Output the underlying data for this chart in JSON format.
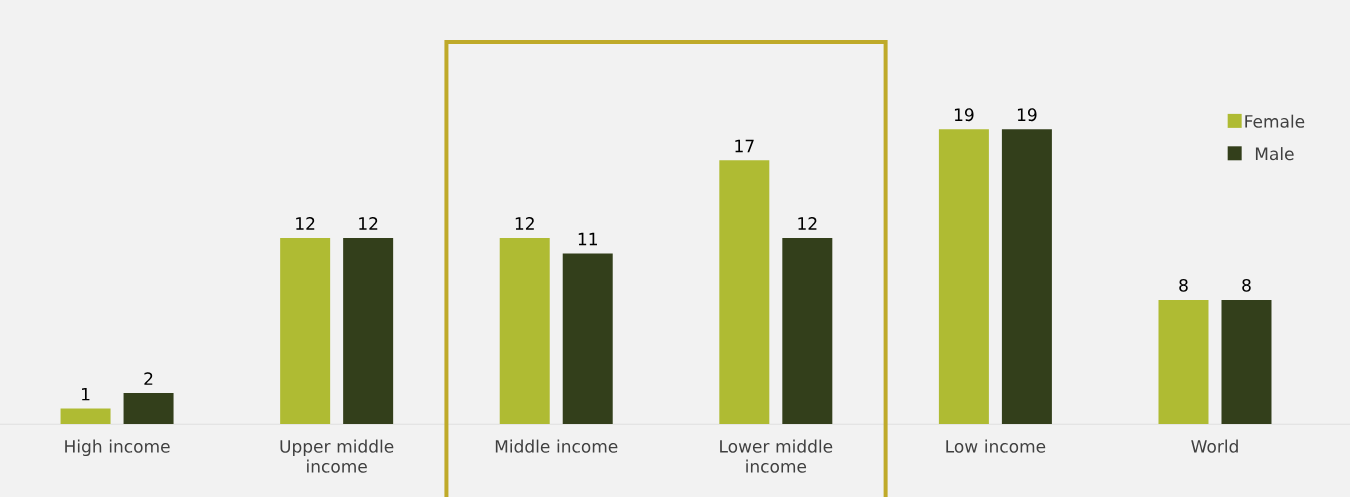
{
  "chart_data": {
    "type": "bar",
    "categories": [
      "High income",
      "Upper middle income",
      "Middle income",
      "Lower middle income",
      "Low income",
      "World"
    ],
    "series": [
      {
        "name": "Female",
        "color": "#afbb33",
        "values": [
          1,
          12,
          12,
          17,
          19,
          8
        ]
      },
      {
        "name": "Male",
        "color": "#333f1b",
        "values": [
          2,
          12,
          11,
          12,
          19,
          8
        ]
      }
    ],
    "data_labels": true,
    "legend": "top right"
  }
}
